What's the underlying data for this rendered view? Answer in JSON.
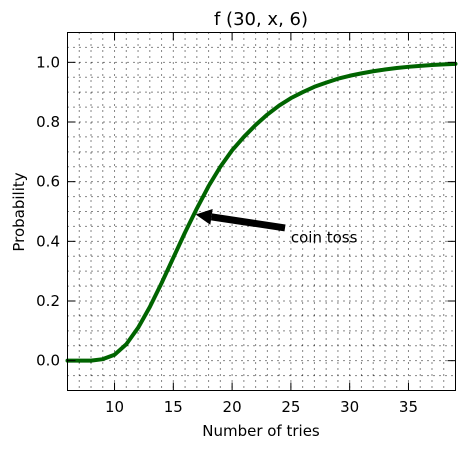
{
  "chart_data": {
    "type": "line",
    "title": "f (30, x, 6)",
    "xlabel": "Number of tries",
    "ylabel": "Probability",
    "xlim": [
      6,
      39
    ],
    "ylim": [
      -0.1,
      1.1
    ],
    "x_ticks": [
      10,
      15,
      20,
      25,
      30,
      35
    ],
    "y_ticks": [
      0.0,
      0.2,
      0.4,
      0.6,
      0.8,
      1.0
    ],
    "x_tick_labels": [
      "10",
      "15",
      "20",
      "25",
      "30",
      "35"
    ],
    "y_tick_labels": [
      "0.0",
      "0.2",
      "0.4",
      "0.6",
      "0.8",
      "1.0"
    ],
    "grid": true,
    "grid_style": "dotted",
    "series": [
      {
        "color": "#006400",
        "x": [
          6,
          7,
          8,
          9,
          10,
          11,
          12,
          13,
          14,
          15,
          16,
          17,
          18,
          19,
          20,
          21,
          22,
          23,
          24,
          25,
          26,
          27,
          28,
          29,
          30,
          31,
          32,
          33,
          34,
          35,
          36,
          37,
          38,
          39
        ],
        "y": [
          0.0,
          0.0,
          0.0,
          0.005,
          0.02,
          0.055,
          0.11,
          0.18,
          0.26,
          0.345,
          0.43,
          0.51,
          0.585,
          0.65,
          0.705,
          0.75,
          0.79,
          0.825,
          0.855,
          0.88,
          0.9,
          0.918,
          0.932,
          0.945,
          0.955,
          0.963,
          0.97,
          0.976,
          0.981,
          0.985,
          0.988,
          0.991,
          0.993,
          0.995
        ]
      }
    ],
    "annotation": {
      "text": "coin toss",
      "point": [
        16.9,
        0.49
      ],
      "text_position": [
        25,
        0.4
      ]
    }
  }
}
